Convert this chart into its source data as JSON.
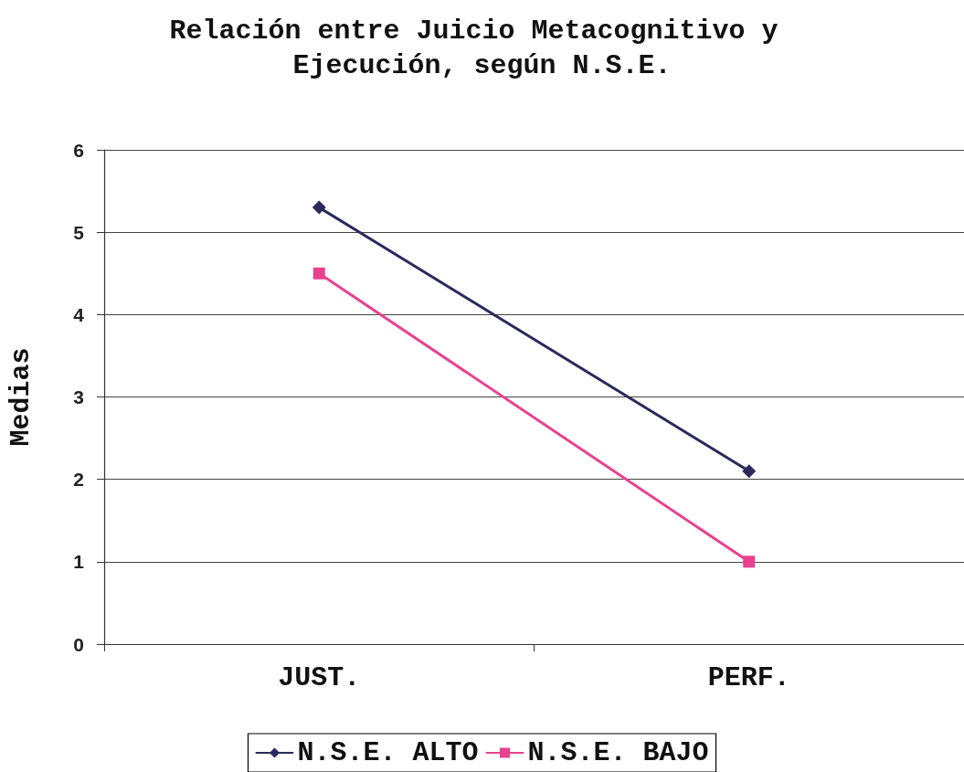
{
  "chart_data": {
    "type": "line",
    "title": "Relación entre Juicio Metacognitivo y Ejecución, según N.S.E.",
    "ylabel": "Medias",
    "categories": [
      "JUST.",
      "PERF."
    ],
    "series": [
      {
        "name": "N.S.E. ALTO",
        "color": "#2a2a5c",
        "marker": "diamond",
        "values": [
          5.3,
          2.1
        ]
      },
      {
        "name": "N.S.E. BAJO",
        "color": "#e8428e",
        "marker": "square",
        "values": [
          4.5,
          1.0
        ]
      }
    ],
    "ylim": [
      0,
      6
    ],
    "yticks": [
      0,
      1,
      2,
      3,
      4,
      5,
      6
    ],
    "grid": "y",
    "legend": "bottom",
    "line_style": "solid"
  }
}
